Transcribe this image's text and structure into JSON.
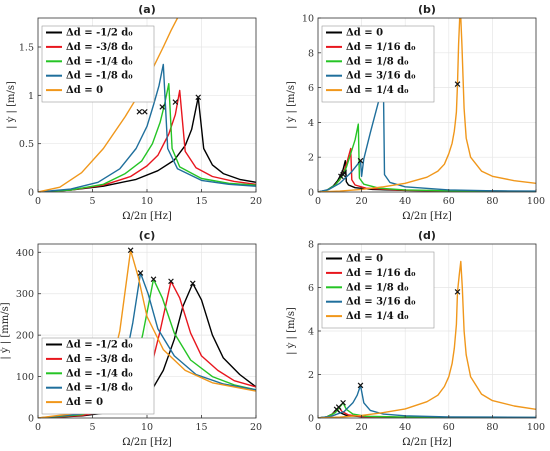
{
  "figure": {
    "background": "#ffffff",
    "series_colors": [
      "#000000",
      "#e8161e",
      "#25c425",
      "#1f6f9c",
      "#f0971b"
    ]
  },
  "chart_data": [
    {
      "id": "a",
      "type": "line",
      "title": "(a)",
      "xlabel": "Ω/2π [Hz]",
      "ylabel": "| ẏ | [m/s]",
      "xlim": [
        0,
        20
      ],
      "ylim": [
        0,
        1.8
      ],
      "xticks": [
        0,
        5,
        10,
        15,
        20
      ],
      "yticks": [
        0,
        0.5,
        1,
        1.5
      ],
      "ytick_labels": [
        "0",
        "0.5",
        "1",
        "1.5"
      ],
      "grid": true,
      "legend_position": "top-left",
      "series": [
        {
          "name": "Δd = -1/2 d₀",
          "color": "#000000",
          "peak_x": 14.7,
          "peak_y": 0.98,
          "marker": [
            14.7,
            0.98
          ],
          "x": [
            0,
            3,
            6,
            9,
            11,
            12.5,
            13.5,
            14.1,
            14.7,
            15.2,
            16,
            17,
            18.5,
            20
          ],
          "y": [
            0,
            0.02,
            0.06,
            0.13,
            0.22,
            0.33,
            0.48,
            0.65,
            0.98,
            0.45,
            0.28,
            0.19,
            0.13,
            0.1
          ]
        },
        {
          "name": "Δd = -3/8 d₀",
          "color": "#e8161e",
          "peak_x": 13.0,
          "peak_y": 1.05,
          "marker": [
            12.6,
            0.93
          ],
          "x": [
            0,
            3,
            6,
            8.5,
            10,
            11,
            12,
            12.6,
            13.0,
            13.5,
            14.5,
            16,
            18,
            20
          ],
          "y": [
            0,
            0.02,
            0.07,
            0.16,
            0.27,
            0.38,
            0.6,
            0.8,
            1.05,
            0.42,
            0.25,
            0.16,
            0.11,
            0.08
          ]
        },
        {
          "name": "Δd = -1/4 d₀",
          "color": "#25c425",
          "peak_x": 12.0,
          "peak_y": 1.12,
          "marker": [
            11.4,
            0.88
          ],
          "x": [
            0,
            3,
            6,
            8,
            9.5,
            10.5,
            11.2,
            11.6,
            12.0,
            12.3,
            13,
            15,
            17.5,
            20
          ],
          "y": [
            0,
            0.02,
            0.08,
            0.19,
            0.32,
            0.5,
            0.72,
            0.9,
            1.12,
            0.45,
            0.26,
            0.14,
            0.09,
            0.07
          ]
        },
        {
          "name": "Δd = -1/8 d₀",
          "color": "#1f6f9c",
          "peak_x": 11.5,
          "peak_y": 1.32,
          "marker": [
            9.8,
            0.83
          ],
          "x": [
            0,
            3,
            5.5,
            7.5,
            9,
            10,
            10.6,
            11.1,
            11.5,
            11.9,
            12.8,
            15,
            17.5,
            20
          ],
          "y": [
            0,
            0.03,
            0.1,
            0.24,
            0.45,
            0.68,
            0.9,
            1.1,
            1.32,
            0.45,
            0.24,
            0.12,
            0.08,
            0.06
          ]
        },
        {
          "name": "Δd = 0",
          "color": "#f0971b",
          "peak_x": 12.8,
          "peak_y": 1.8,
          "marker": [
            9.3,
            0.83
          ],
          "x": [
            0,
            2,
            4,
            6,
            8,
            9.3,
            10.5,
            11.5,
            12.2,
            12.8
          ],
          "y": [
            0,
            0.05,
            0.2,
            0.45,
            0.78,
            1.02,
            1.27,
            1.5,
            1.67,
            1.8
          ]
        }
      ]
    },
    {
      "id": "b",
      "type": "line",
      "title": "(b)",
      "xlabel": "Ω/2π [Hz]",
      "ylabel": "| ẏ | [m/s]",
      "xlim": [
        0,
        100
      ],
      "ylim": [
        0,
        10
      ],
      "xticks": [
        0,
        20,
        40,
        60,
        80,
        100
      ],
      "yticks": [
        0,
        2,
        4,
        6,
        8,
        10
      ],
      "ytick_labels": [
        "0",
        "2",
        "4",
        "6",
        "8",
        "10"
      ],
      "grid": true,
      "legend_position": "top-left",
      "series": [
        {
          "name": "Δd = 0",
          "color": "#000000",
          "peak_x": 12.5,
          "peak_y": 1.8,
          "marker": [
            10.5,
            0.9
          ],
          "x": [
            0,
            4,
            7,
            9,
            10.5,
            11.5,
            12.5,
            13,
            14,
            17,
            25,
            40,
            60,
            80,
            100
          ],
          "y": [
            0,
            0.1,
            0.35,
            0.65,
            1.0,
            1.3,
            1.8,
            0.6,
            0.4,
            0.25,
            0.15,
            0.09,
            0.06,
            0.05,
            0.04
          ]
        },
        {
          "name": "Δd = 1/16 d₀",
          "color": "#e8161e",
          "peak_x": 15.0,
          "peak_y": 2.5,
          "marker": [
            11.5,
            1.0
          ],
          "x": [
            0,
            4,
            7,
            10,
            12,
            13.5,
            15,
            15.5,
            17,
            22,
            40,
            60,
            80,
            100
          ],
          "y": [
            0,
            0.1,
            0.3,
            0.7,
            1.2,
            1.8,
            2.5,
            0.7,
            0.4,
            0.22,
            0.1,
            0.07,
            0.05,
            0.04
          ]
        },
        {
          "name": "Δd = 1/8 d₀",
          "color": "#25c425",
          "peak_x": 18.5,
          "peak_y": 3.9,
          "marker": [
            12.0,
            1.1
          ],
          "x": [
            0,
            4,
            8,
            11,
            13,
            15,
            17,
            18.5,
            19,
            21,
            28,
            40,
            60,
            80,
            100
          ],
          "y": [
            0,
            0.1,
            0.4,
            0.9,
            1.4,
            2.2,
            3.0,
            3.9,
            0.8,
            0.45,
            0.22,
            0.12,
            0.07,
            0.05,
            0.04
          ]
        },
        {
          "name": "Δd = 3/16 d₀",
          "color": "#1f6f9c",
          "peak_x": 30.0,
          "peak_y": 6.2,
          "marker": [
            19.5,
            1.8
          ],
          "x": [
            0,
            5,
            10,
            15,
            19.5,
            20,
            21,
            24,
            28,
            30,
            30.5,
            33,
            40,
            60,
            80,
            100
          ],
          "y": [
            0,
            0.15,
            0.5,
            1.1,
            1.8,
            0.9,
            1.9,
            3.4,
            5.3,
            6.2,
            1.0,
            0.55,
            0.3,
            0.12,
            0.07,
            0.05
          ]
        },
        {
          "name": "Δd = 1/4 d₀",
          "color": "#f0971b",
          "peak_x": 65.0,
          "peak_y": 10.0,
          "marker": [
            64.0,
            6.2
          ],
          "x": [
            0,
            10,
            20,
            30,
            40,
            50,
            55,
            58,
            60,
            61.5,
            62.5,
            63,
            63.5,
            64,
            64.5,
            65,
            65.5,
            66,
            67,
            68,
            70,
            75,
            80,
            90,
            100
          ],
          "y": [
            0,
            0.05,
            0.15,
            0.3,
            0.5,
            0.85,
            1.2,
            1.6,
            2.2,
            2.8,
            3.5,
            4.0,
            4.6,
            6.2,
            8.5,
            10.0,
            10.0,
            8.5,
            4.8,
            3.1,
            2.0,
            1.2,
            0.9,
            0.65,
            0.5
          ]
        }
      ]
    },
    {
      "id": "c",
      "type": "line",
      "title": "(c)",
      "xlabel": "Ω/2π [Hz]",
      "ylabel": "| ẏ | [mm/s]",
      "xlim": [
        0,
        20
      ],
      "ylim": [
        0,
        420
      ],
      "xticks": [
        0,
        5,
        10,
        15,
        20
      ],
      "yticks": [
        0,
        100,
        200,
        300,
        400
      ],
      "ytick_labels": [
        "0",
        "100",
        "200",
        "300",
        "400"
      ],
      "grid": true,
      "legend_position": "bottom-left",
      "series": [
        {
          "name": "Δd = -1/2 d₀",
          "color": "#000000",
          "peak_x": 14.2,
          "peak_y": 325,
          "marker": [
            14.2,
            325
          ],
          "x": [
            0,
            4,
            7,
            9,
            10.5,
            11.5,
            12.5,
            13.3,
            14.2,
            15,
            16,
            17,
            18.5,
            20
          ],
          "y": [
            0,
            5,
            15,
            35,
            70,
            115,
            190,
            270,
            325,
            285,
            200,
            145,
            105,
            75
          ]
        },
        {
          "name": "Δd = -3/8 d₀",
          "color": "#e8161e",
          "peak_x": 12.2,
          "peak_y": 330,
          "marker": [
            12.2,
            330
          ],
          "x": [
            0,
            4,
            7,
            9,
            10.3,
            11.2,
            12.2,
            13,
            14,
            15,
            16.5,
            18,
            20
          ],
          "y": [
            0,
            6,
            20,
            55,
            115,
            210,
            330,
            290,
            205,
            150,
            115,
            90,
            75
          ]
        },
        {
          "name": "Δd = -1/4 d₀",
          "color": "#25c425",
          "peak_x": 10.6,
          "peak_y": 335,
          "marker": [
            10.6,
            335
          ],
          "x": [
            0,
            4,
            6.5,
            8.5,
            9.6,
            10.6,
            11.4,
            12.5,
            14,
            16,
            18,
            20
          ],
          "y": [
            0,
            8,
            30,
            85,
            200,
            335,
            290,
            205,
            140,
            100,
            80,
            68
          ]
        },
        {
          "name": "Δd = -1/8 d₀",
          "color": "#1f6f9c",
          "peak_x": 9.4,
          "peak_y": 350,
          "marker": [
            9.4,
            350
          ],
          "x": [
            0,
            4,
            6,
            7.8,
            8.7,
            9.4,
            10.1,
            11,
            12.5,
            14.5,
            17,
            20
          ],
          "y": [
            0,
            10,
            35,
            110,
            230,
            350,
            300,
            215,
            150,
            105,
            82,
            68
          ]
        },
        {
          "name": "Δd = 0",
          "color": "#f0971b",
          "peak_x": 8.5,
          "peak_y": 405,
          "marker": [
            8.5,
            405
          ],
          "x": [
            0,
            3,
            5,
            6.5,
            7.5,
            8.5,
            9.2,
            10,
            11.5,
            13.5,
            16,
            20
          ],
          "y": [
            0,
            10,
            35,
            100,
            210,
            405,
            340,
            245,
            165,
            115,
            85,
            65
          ]
        }
      ]
    },
    {
      "id": "d",
      "type": "line",
      "title": "(d)",
      "xlabel": "Ω/2π [Hz]",
      "ylabel": "| ẏ | [m/s]",
      "xlim": [
        0,
        100
      ],
      "ylim": [
        0,
        8
      ],
      "xticks": [
        0,
        20,
        40,
        60,
        80,
        100
      ],
      "yticks": [
        0,
        2,
        4,
        6,
        8
      ],
      "ytick_labels": [
        "0",
        "2",
        "4",
        "6",
        "8"
      ],
      "grid": true,
      "legend_position": "top-left",
      "series": [
        {
          "name": "Δd = 0",
          "color": "#000000",
          "peak_x": 8.5,
          "peak_y": 0.4,
          "marker": [
            8.5,
            0.4
          ],
          "x": [
            0,
            4,
            6.5,
            8.5,
            10,
            13,
            20,
            40,
            60,
            80,
            100
          ],
          "y": [
            0,
            0.05,
            0.18,
            0.4,
            0.25,
            0.12,
            0.06,
            0.03,
            0.02,
            0.02,
            0.01
          ]
        },
        {
          "name": "Δd = 1/16 d₀",
          "color": "#e8161e",
          "peak_x": 9.5,
          "peak_y": 0.5,
          "marker": [
            9.5,
            0.5
          ],
          "x": [
            0,
            4,
            7,
            9.5,
            11,
            14,
            20,
            40,
            60,
            80,
            100
          ],
          "y": [
            0,
            0.05,
            0.2,
            0.5,
            0.3,
            0.14,
            0.07,
            0.03,
            0.02,
            0.02,
            0.01
          ]
        },
        {
          "name": "Δd = 1/8 d₀",
          "color": "#25c425",
          "peak_x": 11.5,
          "peak_y": 0.7,
          "marker": [
            11.5,
            0.7
          ],
          "x": [
            0,
            4,
            8,
            11.5,
            13,
            16,
            22,
            40,
            60,
            80,
            100
          ],
          "y": [
            0,
            0.05,
            0.25,
            0.7,
            0.4,
            0.18,
            0.08,
            0.04,
            0.03,
            0.02,
            0.02
          ]
        },
        {
          "name": "Δd = 3/16 d₀",
          "color": "#1f6f9c",
          "peak_x": 19.5,
          "peak_y": 1.5,
          "marker": [
            19.5,
            1.5
          ],
          "x": [
            0,
            6,
            12,
            16,
            18,
            19.5,
            21,
            24,
            30,
            40,
            60,
            80,
            100
          ],
          "y": [
            0,
            0.08,
            0.3,
            0.7,
            1.05,
            1.5,
            0.7,
            0.35,
            0.18,
            0.1,
            0.05,
            0.04,
            0.03
          ]
        },
        {
          "name": "Δd = 1/4 d₀",
          "color": "#f0971b",
          "peak_x": 65.5,
          "peak_y": 7.2,
          "marker": [
            64.0,
            5.8
          ],
          "x": [
            0,
            10,
            20,
            30,
            40,
            50,
            55,
            58,
            60,
            61.5,
            62.5,
            63.5,
            64,
            64.8,
            65.5,
            66.2,
            67,
            68,
            70,
            75,
            80,
            90,
            100
          ],
          "y": [
            0,
            0.04,
            0.12,
            0.25,
            0.42,
            0.75,
            1.05,
            1.45,
            1.9,
            2.5,
            3.2,
            4.3,
            5.8,
            6.6,
            7.2,
            6.0,
            4.0,
            2.9,
            1.9,
            1.1,
            0.8,
            0.55,
            0.4
          ]
        }
      ]
    }
  ]
}
